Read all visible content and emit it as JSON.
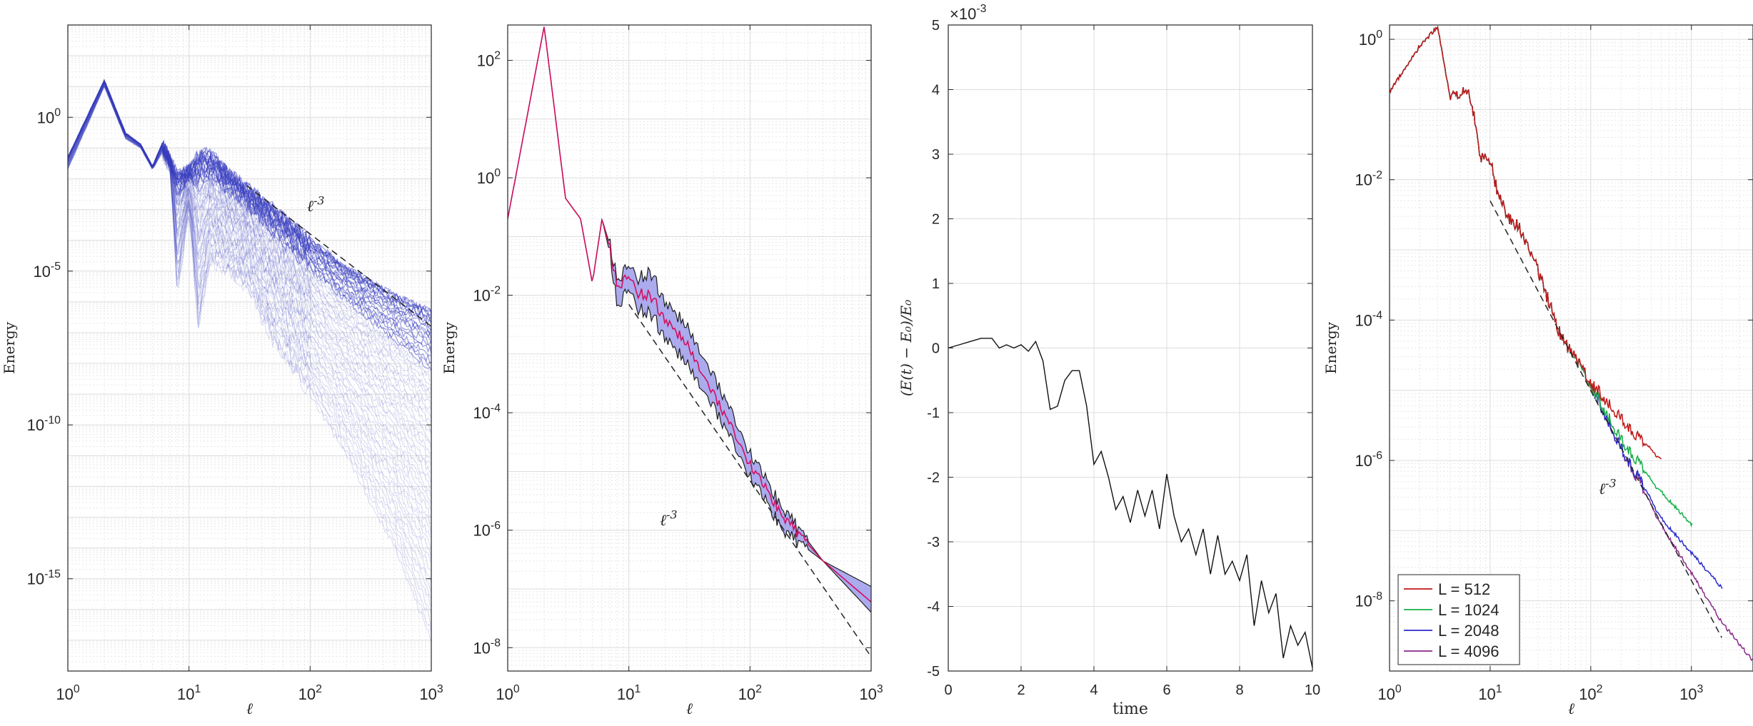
{
  "chart_data": [
    {
      "type": "line",
      "panel": "a",
      "xscale": "log",
      "yscale": "log",
      "xlim": [
        1,
        1000
      ],
      "ylim": [
        1e-18,
        1000.0
      ],
      "xticks": [
        1,
        10,
        100,
        1000
      ],
      "xtick_labels": [
        "10^0",
        "10^1",
        "10^2",
        "10^3"
      ],
      "yticks": [
        1e-15,
        1e-10,
        1e-05,
        1
      ],
      "ytick_labels": [
        "10^-15",
        "10^-10",
        "10^-5",
        "10^0"
      ],
      "xlabel": "ℓ",
      "ylabel": "Energy",
      "grid": true,
      "colors": {
        "band": "#3a3fbf",
        "reference": "#000000"
      },
      "reference_line": {
        "label": "ℓ^-3",
        "x": [
          30,
          1000
        ],
        "y": [
          0.006,
          1.6e-07
        ]
      },
      "band_envelope": {
        "x": [
          1,
          2,
          3,
          4,
          5,
          6,
          7,
          8,
          10,
          12,
          15,
          20,
          30,
          50,
          100,
          200,
          500,
          1000
        ],
        "upper": [
          0.05,
          16,
          0.3,
          0.13,
          0.025,
          0.14,
          0.04,
          0.015,
          0.02,
          0.06,
          0.06,
          0.02,
          0.005,
          0.001,
          0.0001,
          1.3e-05,
          1.6e-06,
          5e-07
        ],
        "lower": [
          0.02,
          10,
          0.2,
          0.1,
          0.02,
          0.07,
          0.02,
          2e-06,
          0.001,
          1e-07,
          2e-05,
          1e-05,
          3e-06,
          5e-08,
          1e-09,
          1e-11,
          1e-14,
          1e-17
        ]
      }
    },
    {
      "type": "line",
      "panel": "b",
      "xscale": "log",
      "yscale": "log",
      "xlim": [
        1,
        1000
      ],
      "ylim": [
        4e-09,
        400
      ],
      "xticks": [
        1,
        10,
        100,
        1000
      ],
      "xtick_labels": [
        "10^0",
        "10^1",
        "10^2",
        "10^3"
      ],
      "yticks": [
        1e-08,
        1e-06,
        0.0001,
        0.01,
        1,
        100
      ],
      "ytick_labels": [
        "10^-8",
        "10^-6",
        "10^-4",
        "10^-2",
        "10^0",
        "10^2"
      ],
      "xlabel": "ℓ",
      "ylabel": "Energy",
      "grid": true,
      "colors": {
        "band": "#8f8fe8",
        "mean": "#d01060",
        "edge": "#202020",
        "reference": "#000000"
      },
      "reference_line": {
        "label": "ℓ^-3",
        "x": [
          10,
          1000
        ],
        "y": [
          0.007,
          7e-09
        ]
      },
      "series": [
        {
          "role": "mean",
          "x": [
            1,
            2,
            3,
            4,
            5,
            6,
            7,
            8,
            10,
            12,
            15,
            20,
            30,
            50,
            100,
            200,
            400,
            1000
          ],
          "y": [
            0.2,
            380,
            0.45,
            0.2,
            0.016,
            0.2,
            0.06,
            0.015,
            0.02,
            0.011,
            0.01,
            0.004,
            0.0015,
            0.0002,
            1.3e-05,
            1.5e-06,
            3e-07,
            6e-08
          ]
        },
        {
          "role": "upper",
          "x": [
            1,
            2,
            3,
            4,
            5,
            6,
            7,
            8,
            10,
            12,
            15,
            20,
            30,
            50,
            100,
            200,
            400,
            1000
          ],
          "y": [
            0.2,
            380,
            0.45,
            0.2,
            0.016,
            0.2,
            0.07,
            0.02,
            0.03,
            0.02,
            0.025,
            0.008,
            0.003,
            0.0004,
            2e-05,
            2e-06,
            3e-07,
            1.1e-07
          ]
        },
        {
          "role": "lower",
          "x": [
            1,
            2,
            3,
            4,
            5,
            6,
            7,
            8,
            10,
            12,
            15,
            20,
            30,
            50,
            100,
            200,
            400,
            1000
          ],
          "y": [
            0.2,
            380,
            0.45,
            0.2,
            0.016,
            0.2,
            0.05,
            0.007,
            0.012,
            0.006,
            0.005,
            0.002,
            0.0007,
            0.00012,
            8e-06,
            9e-07,
            3e-07,
            4e-08
          ]
        }
      ]
    },
    {
      "type": "line",
      "panel": "c",
      "xscale": "linear",
      "yscale": "linear",
      "xlim": [
        0,
        10
      ],
      "ylim": [
        -5,
        5
      ],
      "xticks": [
        0,
        2,
        4,
        6,
        8,
        10
      ],
      "yticks": [
        -5,
        -4,
        -3,
        -2,
        -1,
        0,
        1,
        2,
        3,
        4,
        5
      ],
      "y_exponent": "×10^-3",
      "xlabel": "time",
      "ylabel": "(E(t) − E₀)/E₀",
      "grid": true,
      "colors": {
        "line": "#111111"
      },
      "series": [
        {
          "x": [
            0,
            0.3,
            0.6,
            0.9,
            1.2,
            1.4,
            1.6,
            1.8,
            2.0,
            2.2,
            2.4,
            2.6,
            2.8,
            3.0,
            3.2,
            3.4,
            3.6,
            3.8,
            4.0,
            4.2,
            4.4,
            4.6,
            4.8,
            5.0,
            5.2,
            5.4,
            5.6,
            5.8,
            6.0,
            6.2,
            6.4,
            6.6,
            6.8,
            7.0,
            7.2,
            7.4,
            7.6,
            7.8,
            8.0,
            8.2,
            8.4,
            8.6,
            8.8,
            9.0,
            9.2,
            9.4,
            9.6,
            9.8,
            10.0
          ],
          "y": [
            0,
            0.05,
            0.1,
            0.15,
            0.15,
            0.0,
            0.05,
            0.0,
            0.05,
            -0.05,
            0.1,
            -0.2,
            -0.95,
            -0.9,
            -0.5,
            -0.35,
            -0.35,
            -0.9,
            -1.8,
            -1.6,
            -2.0,
            -2.5,
            -2.3,
            -2.7,
            -2.2,
            -2.6,
            -2.2,
            -2.8,
            -1.95,
            -2.6,
            -3.0,
            -2.8,
            -3.2,
            -2.8,
            -3.5,
            -2.9,
            -3.5,
            -3.3,
            -3.6,
            -3.2,
            -4.3,
            -3.6,
            -4.1,
            -3.8,
            -4.8,
            -4.3,
            -4.6,
            -4.4,
            -4.95
          ]
        }
      ]
    },
    {
      "type": "line",
      "panel": "d",
      "xscale": "log",
      "yscale": "log",
      "xlim": [
        1,
        4096
      ],
      "ylim": [
        1e-09,
        1.6
      ],
      "xticks": [
        1,
        10,
        100,
        1000
      ],
      "xtick_labels": [
        "10^0",
        "10^1",
        "10^2",
        "10^3"
      ],
      "yticks": [
        1e-08,
        1e-06,
        0.0001,
        0.01,
        1
      ],
      "ytick_labels": [
        "10^-8",
        "10^-6",
        "10^-4",
        "10^-2",
        "10^0"
      ],
      "xlabel": "ℓ",
      "ylabel": "Energy",
      "grid": true,
      "legend_position": "bottom-left",
      "reference_line": {
        "label": "ℓ^-3",
        "x": [
          10,
          2000
        ],
        "y": [
          0.005,
          3e-09
        ]
      },
      "series": [
        {
          "name": "L = 512",
          "color": "#c01818",
          "x": [
            1,
            2,
            3,
            4,
            5,
            6,
            7,
            8,
            10,
            12,
            15,
            20,
            30,
            50,
            100,
            200,
            300,
            512
          ],
          "y": [
            0.18,
            0.8,
            1.5,
            0.15,
            0.15,
            0.2,
            0.08,
            0.02,
            0.02,
            0.006,
            0.003,
            0.002,
            0.0005,
            6e-05,
            1.3e-05,
            4e-06,
            2e-06,
            1e-06
          ]
        },
        {
          "name": "L = 1024",
          "color": "#18b04a",
          "x": [
            1,
            2,
            3,
            4,
            5,
            6,
            7,
            8,
            10,
            12,
            15,
            20,
            30,
            50,
            100,
            200,
            400,
            1024
          ],
          "y": [
            0.18,
            0.8,
            1.5,
            0.15,
            0.15,
            0.2,
            0.08,
            0.02,
            0.02,
            0.006,
            0.003,
            0.002,
            0.0005,
            6e-05,
            1.2e-05,
            2e-06,
            5e-07,
            1.2e-07
          ]
        },
        {
          "name": "L = 2048",
          "color": "#2a2acc",
          "x": [
            1,
            2,
            3,
            4,
            5,
            6,
            7,
            8,
            10,
            12,
            15,
            20,
            30,
            50,
            100,
            200,
            500,
            2048
          ],
          "y": [
            0.18,
            0.8,
            1.5,
            0.15,
            0.15,
            0.2,
            0.08,
            0.02,
            0.02,
            0.006,
            0.003,
            0.002,
            0.0005,
            6e-05,
            1.2e-05,
            1.5e-06,
            1.5e-07,
            1.5e-08
          ]
        },
        {
          "name": "L = 4096",
          "color": "#8a2a8a",
          "x": [
            1,
            2,
            3,
            4,
            5,
            6,
            7,
            8,
            10,
            12,
            15,
            20,
            30,
            50,
            100,
            200,
            500,
            1000,
            2000,
            4096
          ],
          "y": [
            0.18,
            0.8,
            1.5,
            0.15,
            0.15,
            0.2,
            0.08,
            0.02,
            0.02,
            0.006,
            0.003,
            0.002,
            0.0005,
            6e-05,
            1.2e-05,
            1.5e-06,
            1.2e-07,
            2.5e-08,
            5e-09,
            1.4e-09
          ]
        }
      ]
    }
  ]
}
